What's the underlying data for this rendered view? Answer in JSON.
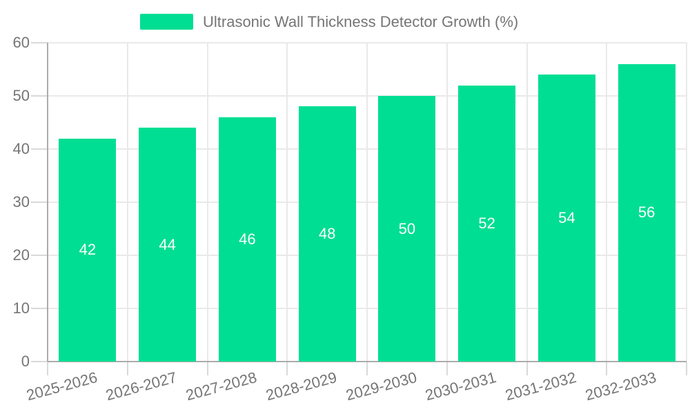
{
  "legend": {
    "label": "Ultrasonic Wall Thickness Detector Growth (%)"
  },
  "colors": {
    "bar": "#00de93",
    "axis_line": "#ababab",
    "gridline": "#e9e9e9",
    "tick": "#d9d9d9",
    "label_text": "#757575",
    "bar_value_text": "#ffffff",
    "background": "#ffffff"
  },
  "chart_data": {
    "type": "bar",
    "title": "Ultrasonic Wall Thickness Detector Growth (%)",
    "categories": [
      "2025-2026",
      "2026-2027",
      "2027-2028",
      "2028-2029",
      "2029-2030",
      "2030-2031",
      "2031-2032",
      "2032-2033"
    ],
    "values": [
      42,
      44,
      46,
      48,
      50,
      52,
      54,
      56
    ],
    "xlabel": "",
    "ylabel": "",
    "ylim": [
      0,
      60
    ],
    "yticks": [
      0,
      10,
      20,
      30,
      40,
      50,
      60
    ],
    "ytick_labels": [
      "0",
      "10",
      "20",
      "30",
      "40",
      "50",
      "60"
    ],
    "grid": true,
    "legend_position": "top",
    "x_label_rotation_deg": -15,
    "bar_labels_inside": true
  }
}
